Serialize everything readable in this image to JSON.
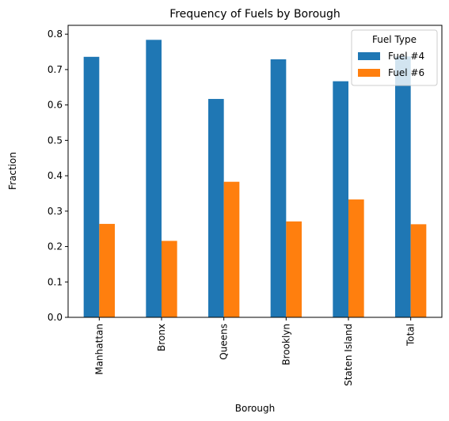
{
  "chart_data": {
    "type": "bar",
    "title": "Frequency of Fuels by Borough",
    "xlabel": "Borough",
    "ylabel": "Fraction",
    "categories": [
      "Manhattan",
      "Bronx",
      "Queens",
      "Brooklyn",
      "Staten Island",
      "Total"
    ],
    "series": [
      {
        "name": "Fuel #4",
        "color": "#1f77b4",
        "values": [
          0.736,
          0.784,
          0.617,
          0.729,
          0.667,
          0.737
        ]
      },
      {
        "name": "Fuel #6",
        "color": "#ff7f0e",
        "values": [
          0.264,
          0.216,
          0.383,
          0.271,
          0.333,
          0.263
        ]
      }
    ],
    "ylim": [
      0,
      0.825
    ],
    "yticks": [
      "0.0",
      "0.1",
      "0.2",
      "0.3",
      "0.4",
      "0.5",
      "0.6",
      "0.7",
      "0.8"
    ],
    "legend": {
      "title": "Fuel Type",
      "placement": "top-right"
    },
    "grid": false
  }
}
